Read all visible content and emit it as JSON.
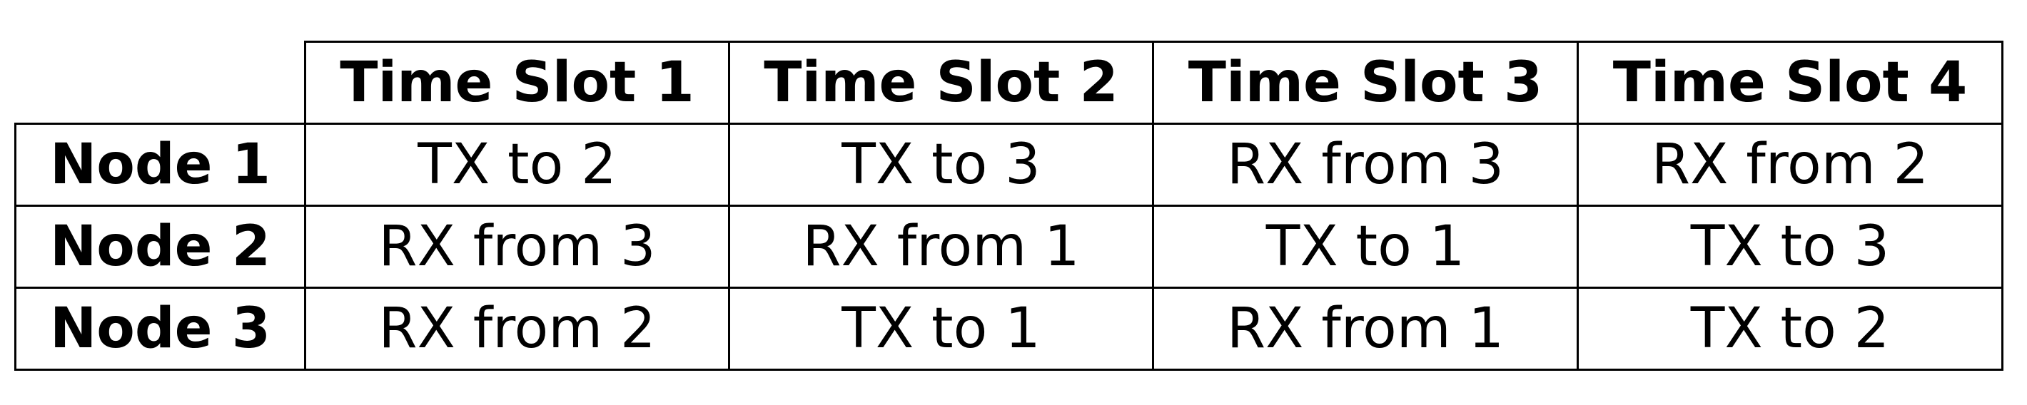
{
  "table": {
    "columns": [
      "Time Slot 1",
      "Time Slot 2",
      "Time Slot 3",
      "Time Slot 4"
    ],
    "rows": [
      {
        "label": "Node 1",
        "cells": [
          "TX to 2",
          "TX to 3",
          "RX from 3",
          "RX from 2"
        ]
      },
      {
        "label": "Node 2",
        "cells": [
          "RX from 3",
          "RX from 1",
          "TX to 1",
          "TX to 3"
        ]
      },
      {
        "label": "Node 3",
        "cells": [
          "RX from 2",
          "TX to 1",
          "RX from 1",
          "TX to 2"
        ]
      }
    ]
  }
}
